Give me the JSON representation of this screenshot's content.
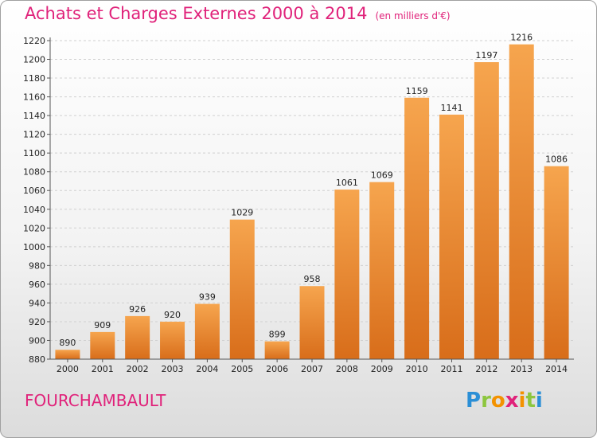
{
  "title": "Achats et Charges Externes 2000 à 2014",
  "unit": "(en milliers d'€)",
  "commune": "FOURCHAMBAULT",
  "logo": {
    "letters": [
      "P",
      "r",
      "o",
      "x",
      "i",
      "t",
      "i"
    ],
    "colors": [
      "#2b8fd6",
      "#8dc63f",
      "#f39200",
      "#e0227a",
      "#f39200",
      "#8dc63f",
      "#2b8fd6"
    ]
  },
  "colors": {
    "accent": "#e0227a",
    "bar_light": "#f6a54e",
    "bar_dark": "#d86d1a",
    "grid": "#d0d0d0",
    "text": "#222222"
  },
  "chart_data": {
    "type": "bar",
    "categories": [
      "2000",
      "2001",
      "2002",
      "2003",
      "2004",
      "2005",
      "2006",
      "2007",
      "2008",
      "2009",
      "2010",
      "2011",
      "2012",
      "2013",
      "2014"
    ],
    "values": [
      890,
      909,
      926,
      920,
      939,
      1029,
      899,
      958,
      1061,
      1069,
      1159,
      1141,
      1197,
      1216,
      1086
    ],
    "ylim": [
      880,
      1220
    ],
    "yticks": [
      880,
      900,
      920,
      940,
      960,
      980,
      1000,
      1020,
      1040,
      1060,
      1080,
      1100,
      1120,
      1140,
      1160,
      1180,
      1200,
      1220
    ],
    "grid": "horizontal dashed",
    "data_labels": true
  }
}
